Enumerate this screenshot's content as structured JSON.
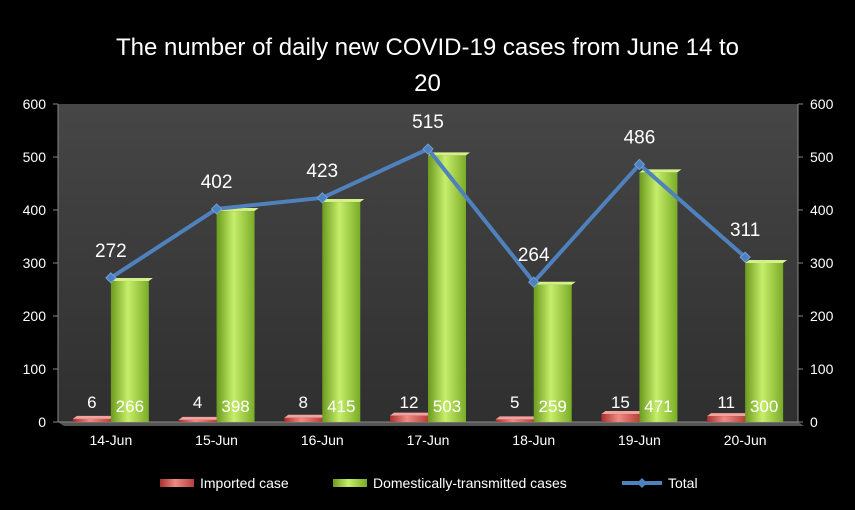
{
  "chart_data": {
    "type": "bar",
    "title_line1": "The number of daily new COVID-19 cases from June 14 to",
    "title_line2": "20",
    "categories": [
      "14-Jun",
      "15-Jun",
      "16-Jun",
      "17-Jun",
      "18-Jun",
      "19-Jun",
      "20-Jun"
    ],
    "series": [
      {
        "name": "Imported case",
        "kind": "bar",
        "values": [
          6,
          4,
          8,
          12,
          5,
          15,
          11
        ]
      },
      {
        "name": "Domestically-transmitted cases",
        "kind": "bar",
        "values": [
          266,
          398,
          415,
          503,
          259,
          471,
          300
        ]
      },
      {
        "name": "Total",
        "kind": "line",
        "values": [
          272,
          402,
          423,
          515,
          264,
          486,
          311
        ]
      }
    ],
    "ylim": [
      0,
      600
    ],
    "yticks": [
      0,
      100,
      200,
      300,
      400,
      500,
      600
    ],
    "y2lim": [
      0,
      600
    ],
    "grid": false,
    "legend": "bottom",
    "colors": {
      "imported": "#d9534f",
      "domestic": "#8cc63f",
      "total": "#4f81bd",
      "plot_bg": "#3c3c3c"
    }
  }
}
